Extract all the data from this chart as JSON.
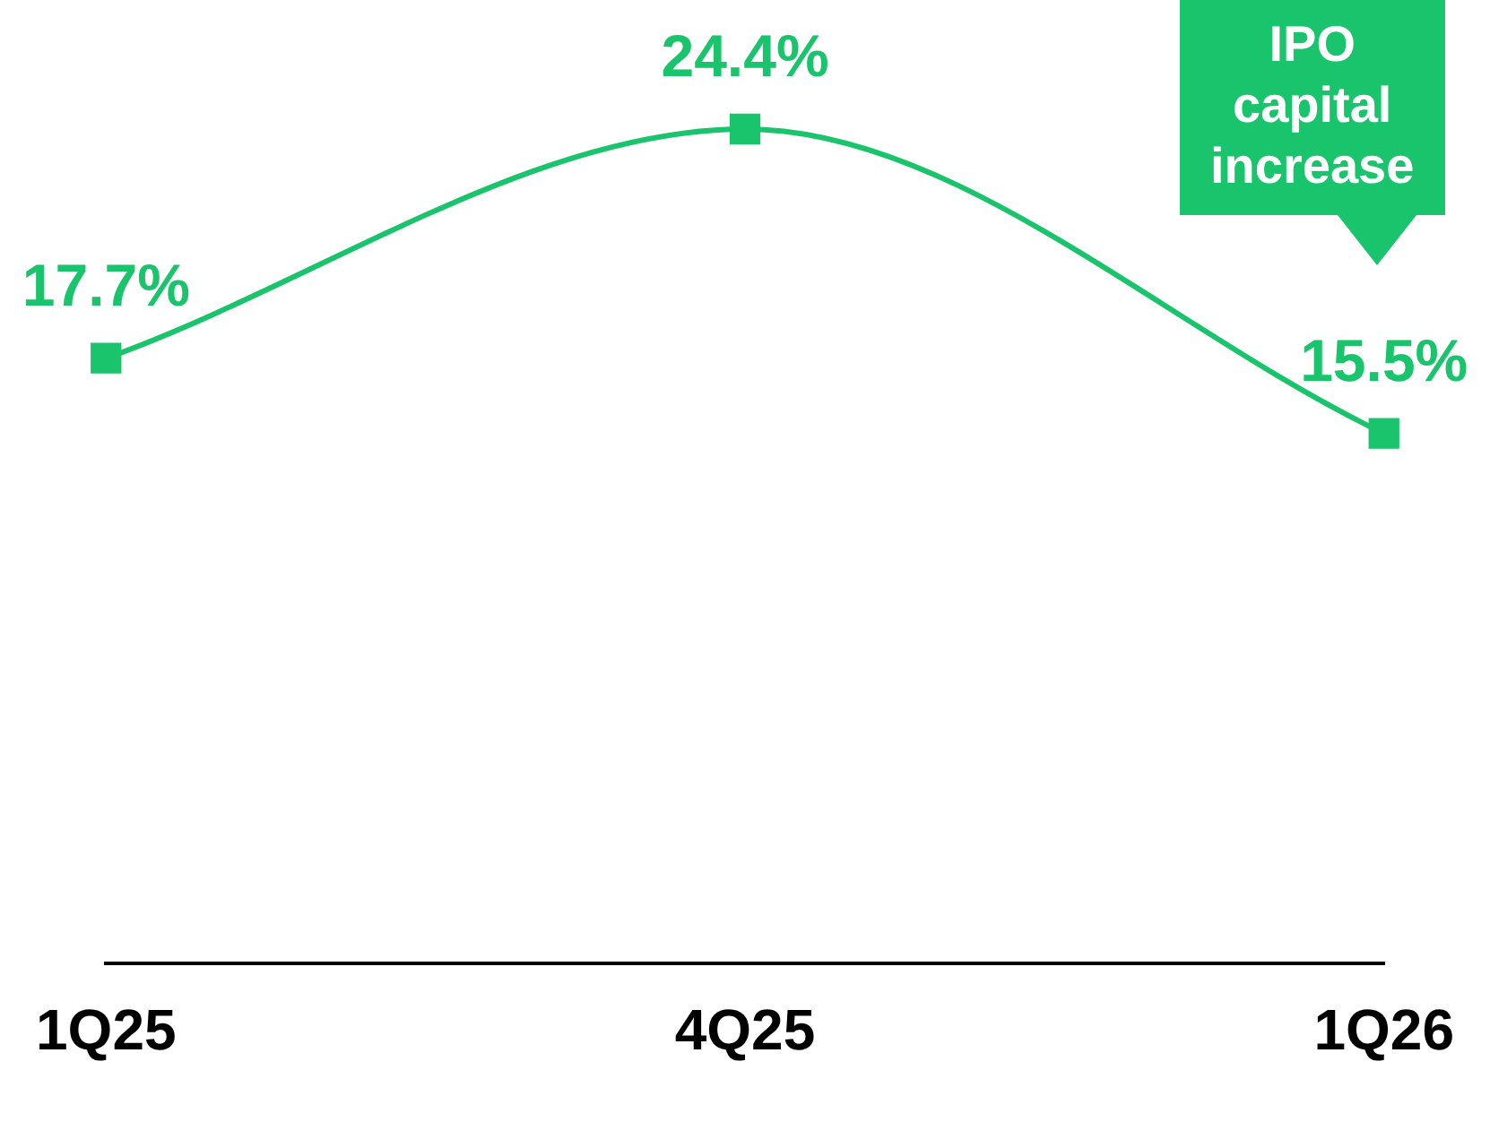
{
  "chart_data": {
    "type": "line",
    "categories": [
      "1Q25",
      "4Q25",
      "1Q26"
    ],
    "series": [
      {
        "color": "#19c46c",
        "values": [
          17.7,
          24.4,
          15.5
        ],
        "value_labels": [
          "17.7%",
          "24.4%",
          "15.5%"
        ]
      }
    ],
    "marker": "square",
    "annotations": [
      "IPO capital increase"
    ]
  }
}
